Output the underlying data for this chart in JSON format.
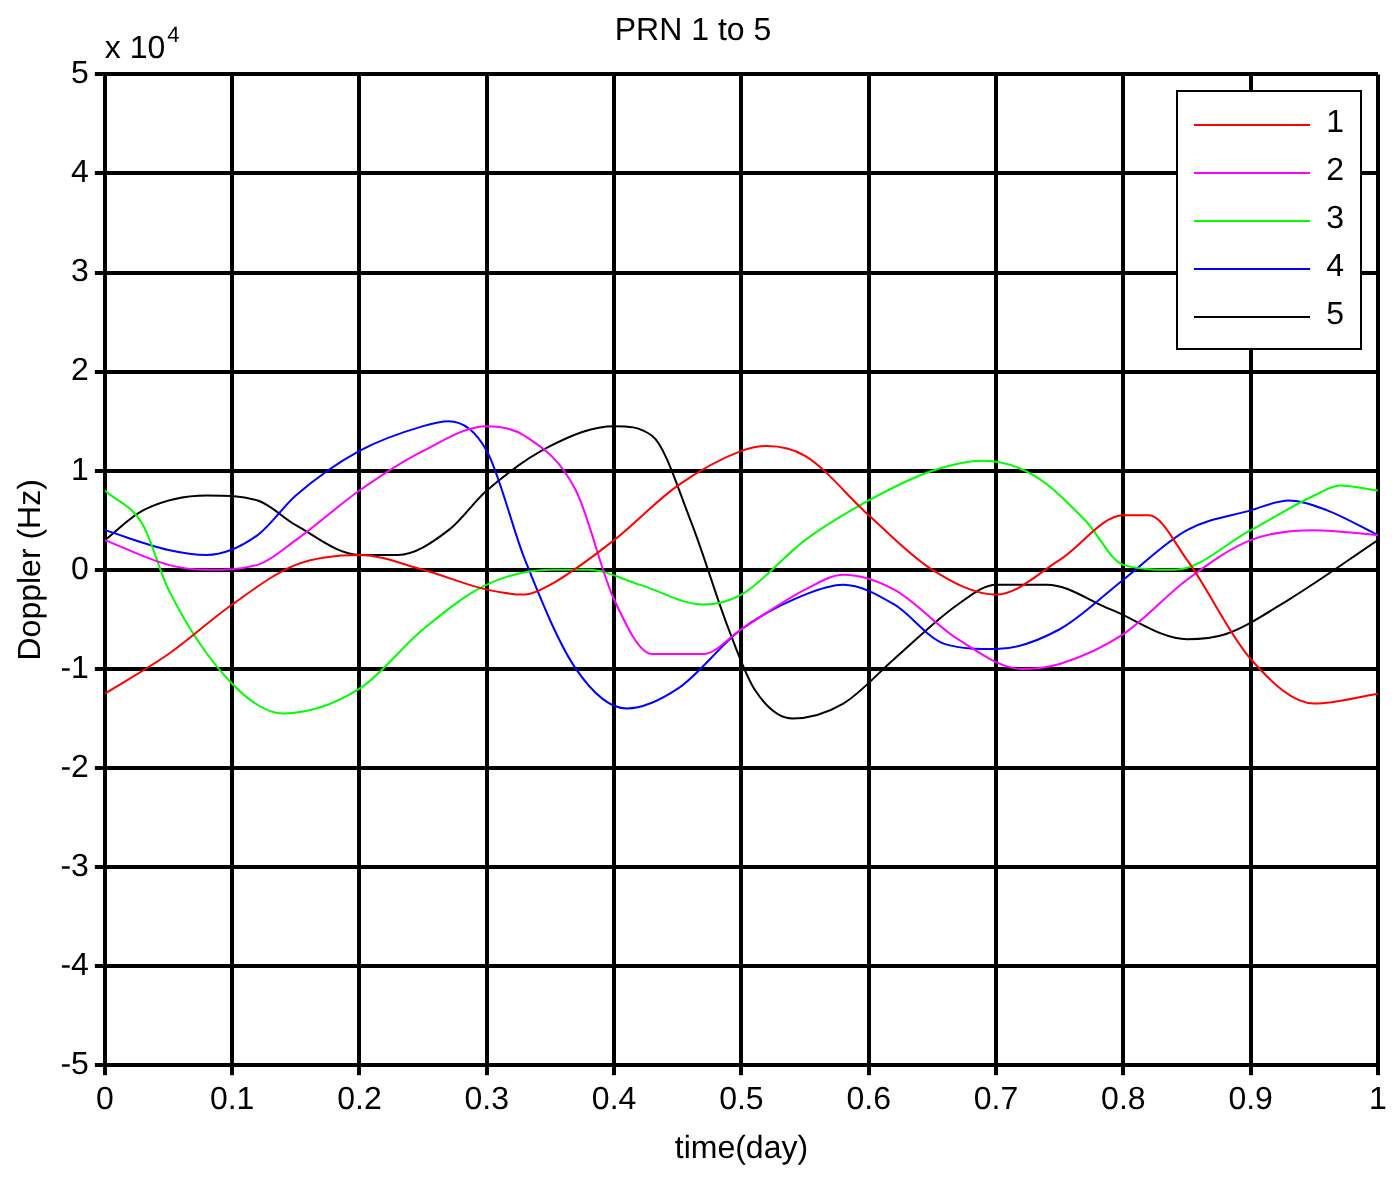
{
  "chart_data": {
    "type": "line",
    "title": "PRN 1 to 5",
    "xlabel": "time(day)",
    "ylabel": "Doppler (Hz)",
    "annotations": [
      "x 10$^{4}$"
    ],
    "xlim": [
      0,
      1
    ],
    "xticks": [
      0,
      0.1,
      0.2,
      0.3,
      0.4,
      0.5,
      0.6,
      0.7,
      0.8,
      0.9,
      1
    ],
    "ylim": [
      -5,
      5
    ],
    "yticks": [
      -5,
      -4,
      -3,
      -2,
      -1,
      0,
      1,
      2,
      3,
      4,
      5
    ],
    "grid": true,
    "legend": "top right",
    "marker": "none",
    "line_style": "solid",
    "series": [
      {
        "name": "1",
        "color": "#ff0000",
        "x": [
          0,
          0.05,
          0.1,
          0.15,
          0.2,
          0.25,
          0.3,
          0.33,
          0.35,
          0.4,
          0.45,
          0.5,
          0.52,
          0.55,
          0.6,
          0.65,
          0.7,
          0.75,
          0.8,
          0.82,
          0.85,
          0.9,
          0.95,
          1
        ],
        "values": [
          -1.25,
          -0.85,
          -0.35,
          0.05,
          0.15,
          0.0,
          -0.2,
          -0.25,
          -0.15,
          0.3,
          0.85,
          1.2,
          1.25,
          1.15,
          0.55,
          0.0,
          -0.25,
          0.1,
          0.55,
          0.55,
          0.1,
          -0.9,
          -1.35,
          -1.25
        ]
      },
      {
        "name": "2",
        "color": "#ff00ff",
        "x": [
          0,
          0.05,
          0.08,
          0.12,
          0.15,
          0.2,
          0.25,
          0.3,
          0.33,
          0.37,
          0.4,
          0.43,
          0.47,
          0.5,
          0.55,
          0.58,
          0.62,
          0.67,
          0.72,
          0.75,
          0.8,
          0.85,
          0.9,
          0.95,
          1
        ],
        "values": [
          0.3,
          0.05,
          0.0,
          0.05,
          0.3,
          0.8,
          1.2,
          1.45,
          1.35,
          0.8,
          -0.3,
          -0.85,
          -0.85,
          -0.6,
          -0.2,
          -0.05,
          -0.2,
          -0.7,
          -1.0,
          -0.95,
          -0.65,
          -0.1,
          0.3,
          0.4,
          0.35
        ]
      },
      {
        "name": "3",
        "color": "#00ff00",
        "x": [
          0,
          0.03,
          0.05,
          0.1,
          0.14,
          0.2,
          0.25,
          0.3,
          0.35,
          0.38,
          0.42,
          0.47,
          0.5,
          0.55,
          0.6,
          0.65,
          0.69,
          0.73,
          0.77,
          0.8,
          0.84,
          0.9,
          0.95,
          0.97,
          1
        ],
        "values": [
          0.8,
          0.45,
          -0.2,
          -1.15,
          -1.45,
          -1.2,
          -0.6,
          -0.15,
          0.0,
          0.0,
          -0.15,
          -0.35,
          -0.25,
          0.3,
          0.7,
          1.0,
          1.1,
          0.95,
          0.5,
          0.05,
          0.0,
          0.4,
          0.75,
          0.85,
          0.8
        ]
      },
      {
        "name": "4",
        "color": "#0000ff",
        "x": [
          0,
          0.05,
          0.08,
          0.12,
          0.15,
          0.2,
          0.25,
          0.27,
          0.3,
          0.33,
          0.37,
          0.41,
          0.45,
          0.5,
          0.55,
          0.58,
          0.62,
          0.66,
          0.7,
          0.75,
          0.8,
          0.85,
          0.9,
          0.93,
          0.96,
          1
        ],
        "values": [
          0.4,
          0.2,
          0.15,
          0.35,
          0.75,
          1.2,
          1.45,
          1.5,
          1.2,
          0.1,
          -1.0,
          -1.4,
          -1.2,
          -0.6,
          -0.25,
          -0.15,
          -0.35,
          -0.75,
          -0.8,
          -0.6,
          -0.1,
          0.4,
          0.6,
          0.7,
          0.6,
          0.35
        ]
      },
      {
        "name": "5",
        "color": "#000000",
        "x": [
          0,
          0.03,
          0.08,
          0.12,
          0.15,
          0.2,
          0.23,
          0.27,
          0.3,
          0.35,
          0.4,
          0.43,
          0.46,
          0.49,
          0.51,
          0.54,
          0.58,
          0.62,
          0.67,
          0.7,
          0.74,
          0.79,
          0.85,
          0.88,
          0.93,
          1
        ],
        "values": [
          0.3,
          0.6,
          0.75,
          0.7,
          0.45,
          0.15,
          0.15,
          0.4,
          0.8,
          1.25,
          1.45,
          1.35,
          0.5,
          -0.6,
          -1.2,
          -1.5,
          -1.35,
          -0.9,
          -0.35,
          -0.15,
          -0.15,
          -0.4,
          -0.7,
          -0.65,
          -0.3,
          0.3
        ]
      }
    ]
  }
}
